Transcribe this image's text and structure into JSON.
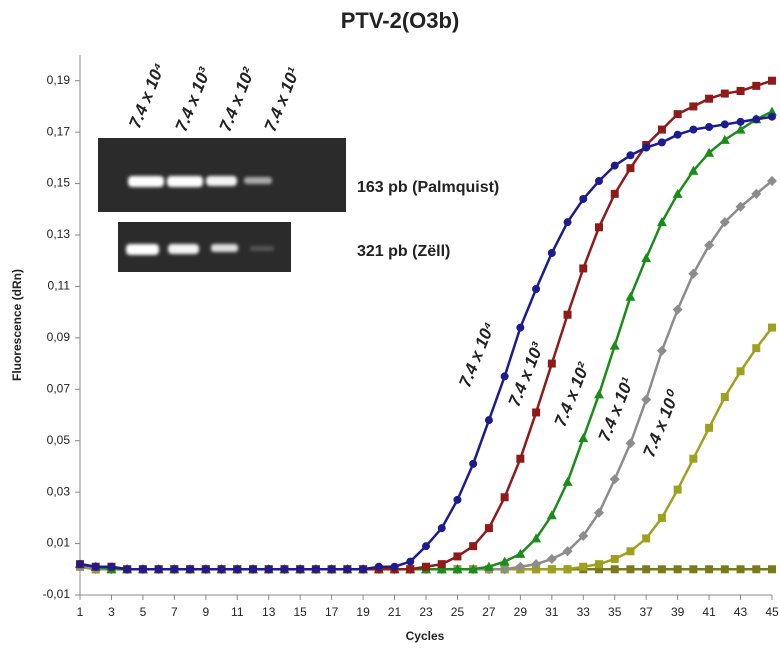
{
  "chart_data": {
    "type": "line",
    "title": "PTV-2(O3b)",
    "x_label": "Cycles",
    "y_label": "Fluorescence (dRn)",
    "x": [
      1,
      2,
      3,
      4,
      5,
      6,
      7,
      8,
      9,
      10,
      11,
      12,
      13,
      14,
      15,
      16,
      17,
      18,
      19,
      20,
      21,
      22,
      23,
      24,
      25,
      26,
      27,
      28,
      29,
      30,
      31,
      32,
      33,
      34,
      35,
      36,
      37,
      38,
      39,
      40,
      41,
      42,
      43,
      44,
      45
    ],
    "xlim": [
      1,
      45
    ],
    "xticks": [
      1,
      3,
      5,
      7,
      9,
      11,
      13,
      15,
      17,
      19,
      21,
      23,
      25,
      27,
      29,
      31,
      33,
      35,
      37,
      39,
      41,
      43,
      45
    ],
    "ylim": [
      -0.01,
      0.2
    ],
    "yticks": [
      {
        "value": -0.01,
        "label": "-0,01"
      },
      {
        "value": 0.01,
        "label": "0,01"
      },
      {
        "value": 0.03,
        "label": "0,03"
      },
      {
        "value": 0.05,
        "label": "0,05"
      },
      {
        "value": 0.07,
        "label": "0,07"
      },
      {
        "value": 0.09,
        "label": "0,09"
      },
      {
        "value": 0.11,
        "label": "0,11"
      },
      {
        "value": 0.13,
        "label": "0,13"
      },
      {
        "value": 0.15,
        "label": "0,15"
      },
      {
        "value": 0.17,
        "label": "0,17"
      },
      {
        "value": 0.19,
        "label": "0,19"
      }
    ],
    "series": [
      {
        "color": "#1c1c8e",
        "marker": "circle",
        "values": [
          0.002,
          0.001,
          0.001,
          0,
          0,
          0,
          0,
          0,
          0,
          0,
          0,
          0,
          0,
          0,
          0,
          0,
          0,
          0,
          0,
          0.001,
          0.001,
          0.003,
          0.009,
          0.016,
          0.027,
          0.041,
          0.058,
          0.075,
          0.094,
          0.109,
          0.123,
          0.135,
          0.144,
          0.151,
          0.157,
          0.161,
          0.164,
          0.166,
          0.169,
          0.171,
          0.172,
          0.173,
          0.174,
          0.175,
          0.176
        ]
      },
      {
        "color": "#8e1a1a",
        "marker": "square",
        "values": [
          0.002,
          0.001,
          0.001,
          0,
          0,
          0,
          0,
          0,
          0,
          0,
          0,
          0,
          0,
          0,
          0,
          0,
          0,
          0,
          0,
          0,
          0,
          0,
          0.001,
          0.002,
          0.005,
          0.009,
          0.016,
          0.028,
          0.043,
          0.061,
          0.08,
          0.099,
          0.117,
          0.133,
          0.146,
          0.156,
          0.165,
          0.171,
          0.177,
          0.18,
          0.183,
          0.185,
          0.186,
          0.188,
          0.19
        ]
      },
      {
        "color": "#1a8c1a",
        "marker": "triangle",
        "values": [
          0.002,
          0.001,
          0,
          0,
          0,
          0,
          0,
          0,
          0,
          0,
          0,
          0,
          0,
          0,
          0,
          0,
          0,
          0,
          0,
          0,
          0,
          0,
          0,
          0,
          0,
          0,
          0.001,
          0.003,
          0.006,
          0.012,
          0.021,
          0.034,
          0.051,
          0.068,
          0.087,
          0.106,
          0.121,
          0.135,
          0.146,
          0.155,
          0.162,
          0.167,
          0.171,
          0.175,
          0.178
        ]
      },
      {
        "color": "#8c8c8c",
        "marker": "diamond",
        "values": [
          0.001,
          0,
          0,
          0,
          0,
          0,
          0,
          0,
          0,
          0,
          0,
          0,
          0,
          0,
          0,
          0,
          0,
          0,
          0,
          0,
          0,
          0,
          0,
          0,
          0,
          0,
          0,
          0,
          0.001,
          0.002,
          0.004,
          0.007,
          0.013,
          0.022,
          0.035,
          0.049,
          0.066,
          0.085,
          0.101,
          0.115,
          0.126,
          0.135,
          0.141,
          0.146,
          0.151
        ]
      },
      {
        "color": "#a0a020",
        "marker": "square",
        "values": [
          0.001,
          0,
          0,
          0,
          0,
          0,
          0,
          0,
          0,
          0,
          0,
          0,
          0,
          0,
          0,
          0,
          0,
          0,
          0,
          0,
          0,
          0,
          0,
          0,
          0,
          0,
          0,
          0,
          0,
          0,
          0,
          0,
          0.001,
          0.002,
          0.004,
          0.007,
          0.012,
          0.02,
          0.031,
          0.043,
          0.055,
          0.067,
          0.077,
          0.086,
          0.094
        ]
      },
      {
        "color": "#7a7a1a",
        "marker": "square",
        "values": [
          0.001,
          0,
          0,
          0,
          0,
          0,
          0,
          0,
          0,
          0,
          0,
          0,
          0,
          0,
          0,
          0,
          0,
          0,
          0,
          0,
          0,
          0,
          0,
          0,
          0,
          0,
          0,
          0,
          0,
          0,
          0,
          0,
          0,
          0,
          0,
          0,
          0,
          0,
          0,
          0,
          0,
          0,
          0,
          0,
          0
        ]
      }
    ],
    "annotations": [
      "7.4 x 10⁴",
      "7.4 x 10³",
      "7.4 x 10²",
      "7.4 x 10¹",
      "7.4 x 10⁰"
    ],
    "gel_labels": [
      "7.4 x 10⁴",
      "7.4 x 10³",
      "7.4 x 10²",
      "7.4 x 10¹"
    ],
    "gel_bands": [
      "163 pb (Palmquist)",
      "321 pb (Zëll)"
    ]
  }
}
